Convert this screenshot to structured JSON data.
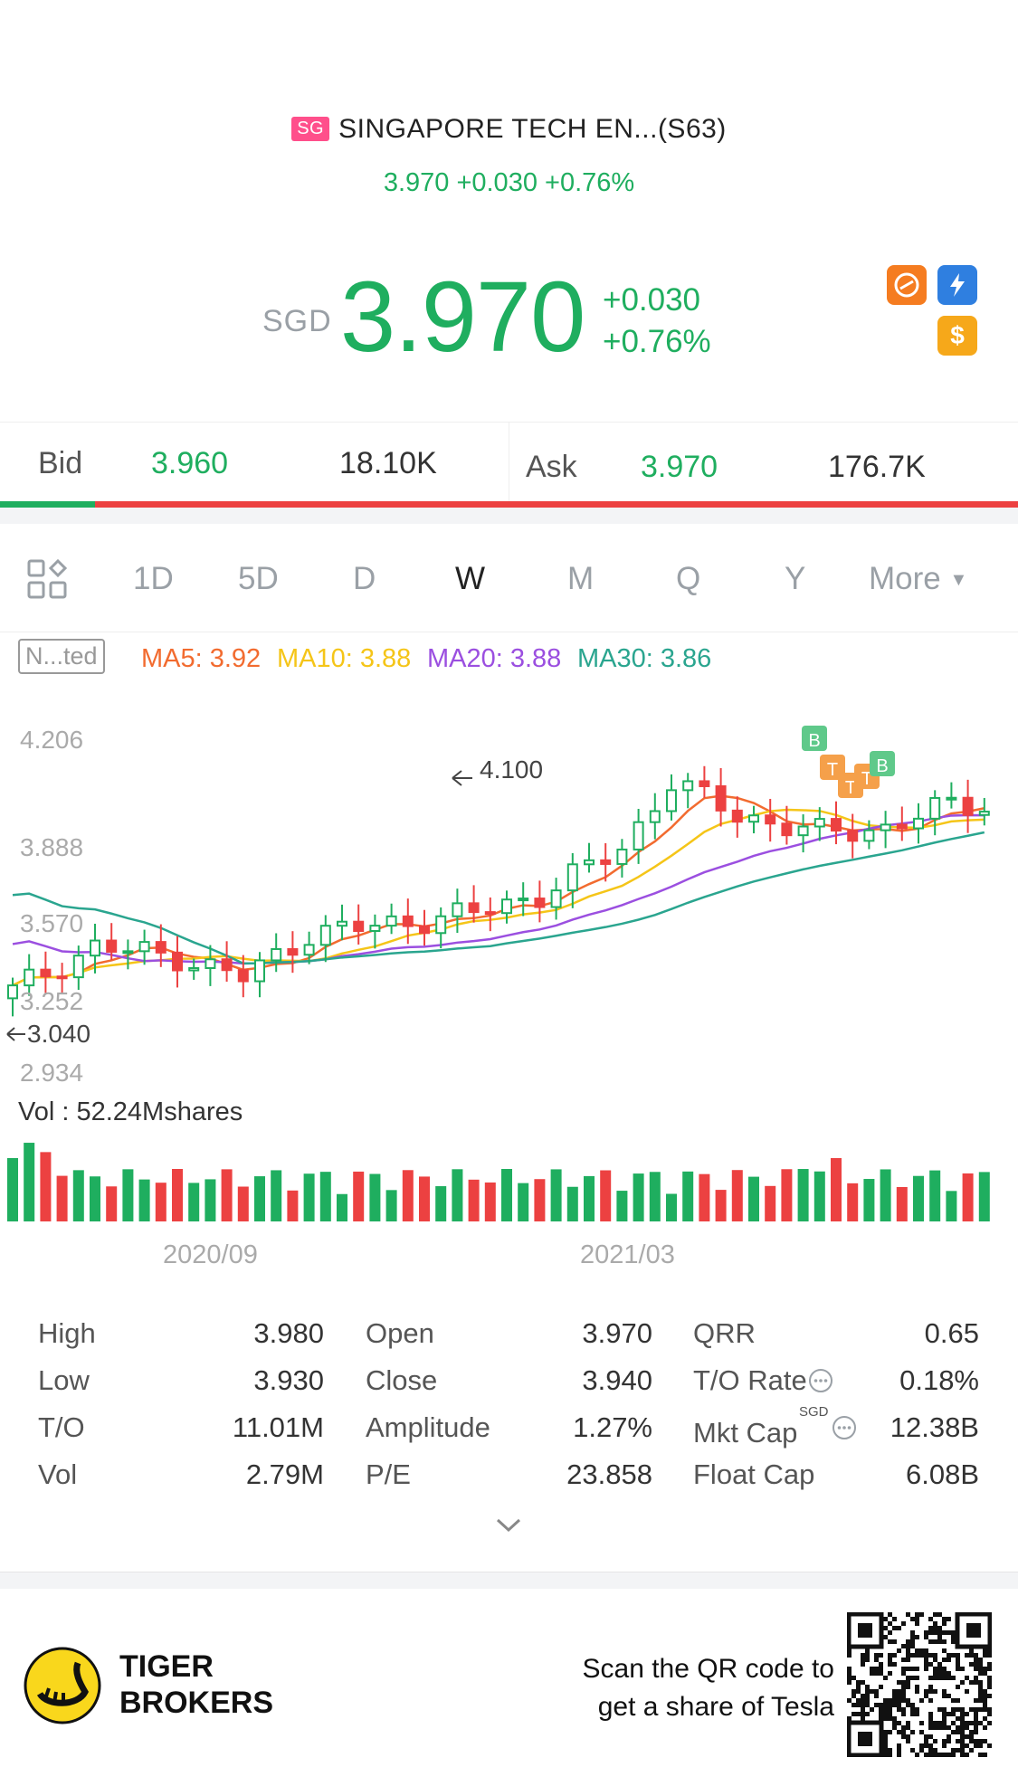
{
  "header": {
    "market_badge": "SG",
    "name": "SINGAPORE TECH EN...(S63)",
    "quote_line": "3.970 +0.030 +0.76%"
  },
  "price": {
    "currency": "SGD",
    "last": "3.970",
    "change": "+0.030",
    "change_pct": "+0.76%"
  },
  "icons": [
    "share-icon",
    "flash-icon",
    "dollar-icon"
  ],
  "bid_ask": {
    "bid_label": "Bid",
    "bid_price": "3.960",
    "bid_size": "18.10K",
    "ask_label": "Ask",
    "ask_price": "3.970",
    "ask_size": "176.7K",
    "bid_fraction": 0.093
  },
  "tabs": [
    "1D",
    "5D",
    "D",
    "W",
    "M",
    "Q",
    "Y",
    "More"
  ],
  "active_tab": "W",
  "ma": {
    "adjust_btn": "N...ted",
    "ma5": "MA5: 3.92",
    "ma10": "MA10: 3.88",
    "ma20": "MA20: 3.88",
    "ma30": "MA30: 3.86"
  },
  "colors": {
    "up": "#1fae5f",
    "down": "#ec4141",
    "ma5": "#f26b2f",
    "ma10": "#f5c518",
    "ma20": "#9b4fe0",
    "ma30": "#2aa58f"
  },
  "chart_data": {
    "type": "candlestick",
    "y_ticks": [
      "4.206",
      "3.888",
      "3.570",
      "3.252",
      "2.934"
    ],
    "ylim": [
      2.934,
      4.206
    ],
    "high_marker": "4.100",
    "low_marker": "3.040",
    "volume_label": "Vol  : 52.24Mshares",
    "x_ticks": [
      "2020/09",
      "2021/03"
    ],
    "trade_markers": [
      "B",
      "T",
      "T",
      "T",
      "B"
    ]
  },
  "stats": [
    {
      "label": "High",
      "value": "3.980"
    },
    {
      "label": "Low",
      "value": "3.930"
    },
    {
      "label": "T/O",
      "value": "11.01M"
    },
    {
      "label": "Vol",
      "value": "2.79M"
    },
    {
      "label": "Open",
      "value": "3.970"
    },
    {
      "label": "Close",
      "value": "3.940"
    },
    {
      "label": "Amplitude",
      "value": "1.27%"
    },
    {
      "label": "P/E",
      "value": "23.858"
    },
    {
      "label": "QRR",
      "value": "0.65"
    },
    {
      "label": "T/O Rate",
      "value": "0.18%"
    },
    {
      "label": "Mkt Cap",
      "value": "12.38B",
      "sup": "SGD"
    },
    {
      "label": "Float Cap",
      "value": "6.08B"
    }
  ],
  "footer": {
    "brand_line1": "TIGER",
    "brand_line2": "BROKERS",
    "scan_line1": "Scan the QR code to",
    "scan_line2": "get a share of Tesla"
  }
}
